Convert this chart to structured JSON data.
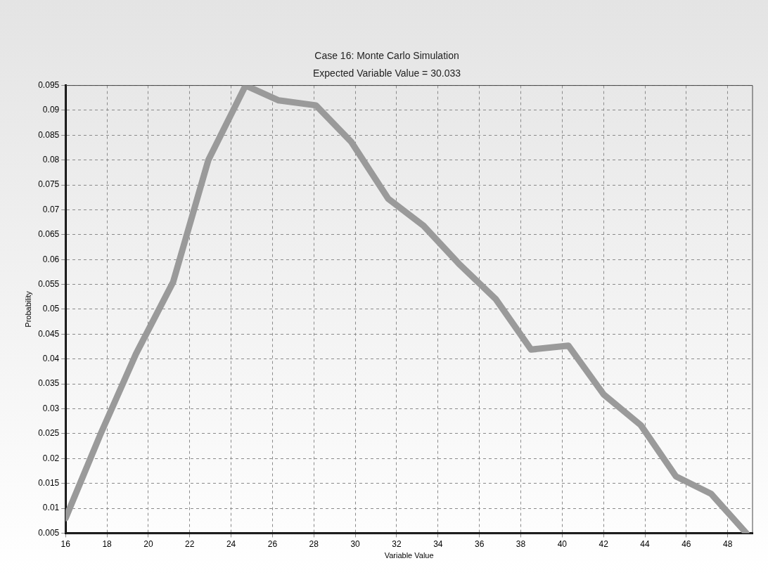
{
  "chart_data": {
    "type": "line",
    "title": "Case 16: Monte Carlo Simulation",
    "subtitle": "Expected Variable Value = 30.033",
    "xlabel": "Variable Value",
    "ylabel": "Probability",
    "x": [
      16,
      17.7,
      19.4,
      21.2,
      22.9,
      24.7,
      26.3,
      28.1,
      29.8,
      31.6,
      33.3,
      35.0,
      36.8,
      38.5,
      40.3,
      42.0,
      43.8,
      45.5,
      47.2,
      48.9
    ],
    "series": [
      {
        "color": "#9a9a9a",
        "values": [
          0.008,
          0.025,
          0.041,
          0.0555,
          0.08,
          0.095,
          0.092,
          0.091,
          0.0837,
          0.0722,
          0.0668,
          0.0592,
          0.052,
          0.0419,
          0.0427,
          0.0329,
          0.0267,
          0.0164,
          0.0129,
          0.005
        ]
      }
    ],
    "xlim": [
      16,
      49.2
    ],
    "xticks": [
      16,
      18,
      20,
      22,
      24,
      26,
      28,
      30,
      32,
      34,
      36,
      38,
      40,
      42,
      44,
      46,
      48
    ],
    "ylim": [
      0.005,
      0.095
    ],
    "yticks": [
      0.005,
      0.01,
      0.015,
      0.02,
      0.025,
      0.03,
      0.035,
      0.04,
      0.045,
      0.05,
      0.055,
      0.06,
      0.065,
      0.07,
      0.075,
      0.08,
      0.085,
      0.09,
      0.095
    ],
    "grid": true,
    "legend": false,
    "marker": "none",
    "line_style": "solid"
  }
}
